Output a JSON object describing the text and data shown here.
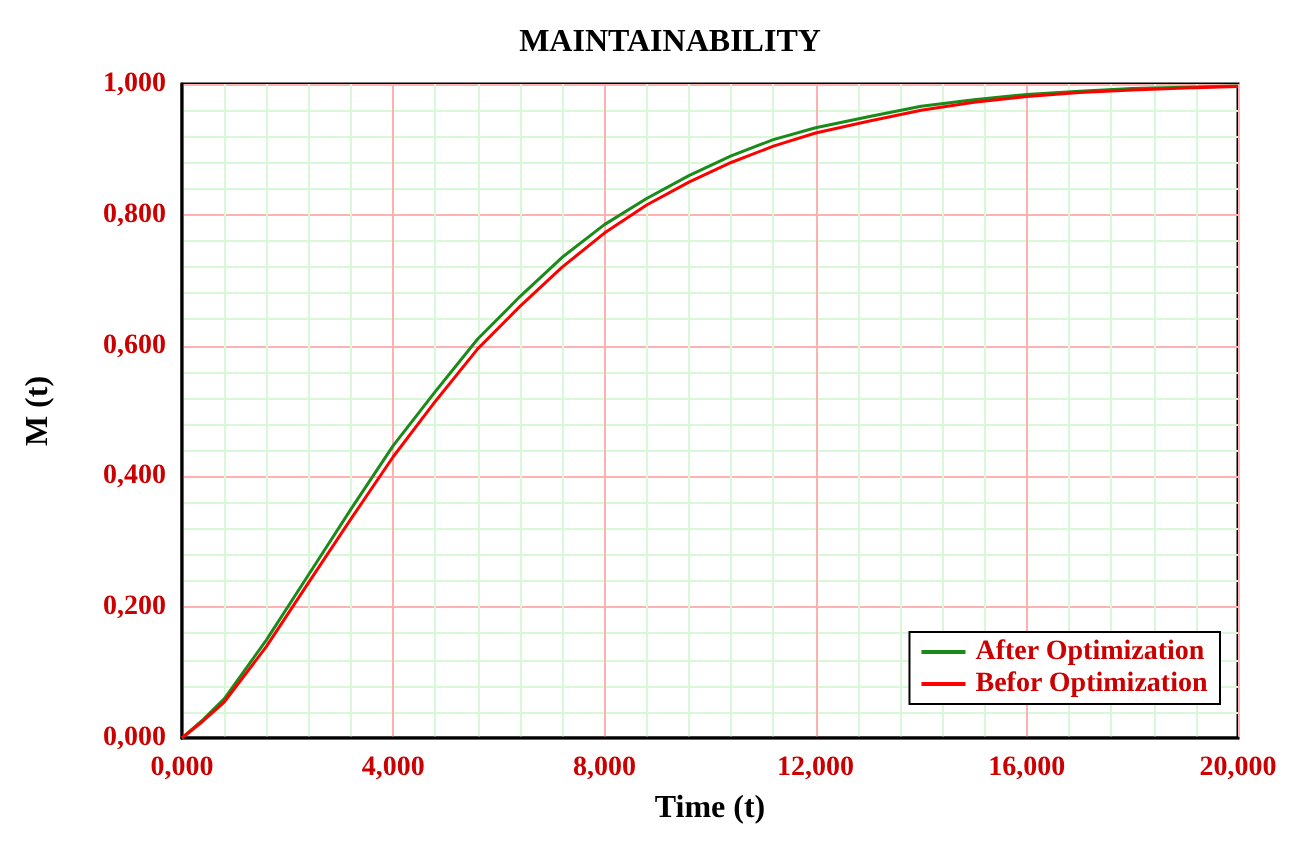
{
  "chart_data": {
    "type": "line",
    "title": "MAINTAINABILITY",
    "xlabel": "Time (t)",
    "ylabel": "M (t)",
    "x": [
      0,
      0.4,
      0.8,
      1.6,
      2.4,
      3.2,
      4,
      4.8,
      5.6,
      6.4,
      7.2,
      8,
      8.8,
      9.6,
      10.4,
      11.2,
      12,
      13,
      14,
      15,
      16,
      17,
      18,
      19,
      20
    ],
    "series": [
      {
        "name": "After Optimization",
        "color": "#1a8a1a",
        "values": [
          0,
          0.028,
          0.06,
          0.15,
          0.25,
          0.35,
          0.447,
          0.53,
          0.61,
          0.675,
          0.735,
          0.785,
          0.825,
          0.86,
          0.89,
          0.915,
          0.933,
          0.95,
          0.966,
          0.976,
          0.984,
          0.989,
          0.993,
          0.995,
          0.997
        ]
      },
      {
        "name": "Befor Optimization",
        "color": "#ff0000",
        "values": [
          0,
          0.026,
          0.055,
          0.14,
          0.238,
          0.335,
          0.43,
          0.515,
          0.595,
          0.66,
          0.72,
          0.772,
          0.815,
          0.85,
          0.88,
          0.905,
          0.925,
          0.943,
          0.96,
          0.972,
          0.981,
          0.987,
          0.991,
          0.994,
          0.996
        ]
      }
    ],
    "xlim": [
      0,
      20
    ],
    "xticks": [
      {
        "value": 0,
        "label": "0,000"
      },
      {
        "value": 4,
        "label": "4,000"
      },
      {
        "value": 8,
        "label": "8,000"
      },
      {
        "value": 12,
        "label": "12,000"
      },
      {
        "value": 16,
        "label": "16,000"
      },
      {
        "value": 20,
        "label": "20,000"
      }
    ],
    "ylim": [
      0,
      1
    ],
    "yticks": [
      {
        "value": 0,
        "label": "0,000"
      },
      {
        "value": 0.2,
        "label": "0,200"
      },
      {
        "value": 0.4,
        "label": "0,400"
      },
      {
        "value": 0.6,
        "label": "0,600"
      },
      {
        "value": 0.8,
        "label": "0,800"
      },
      {
        "value": 1,
        "label": "1,000"
      }
    ],
    "grid": true,
    "legend": "bottom right",
    "marker": "none",
    "line_style": "solid"
  }
}
